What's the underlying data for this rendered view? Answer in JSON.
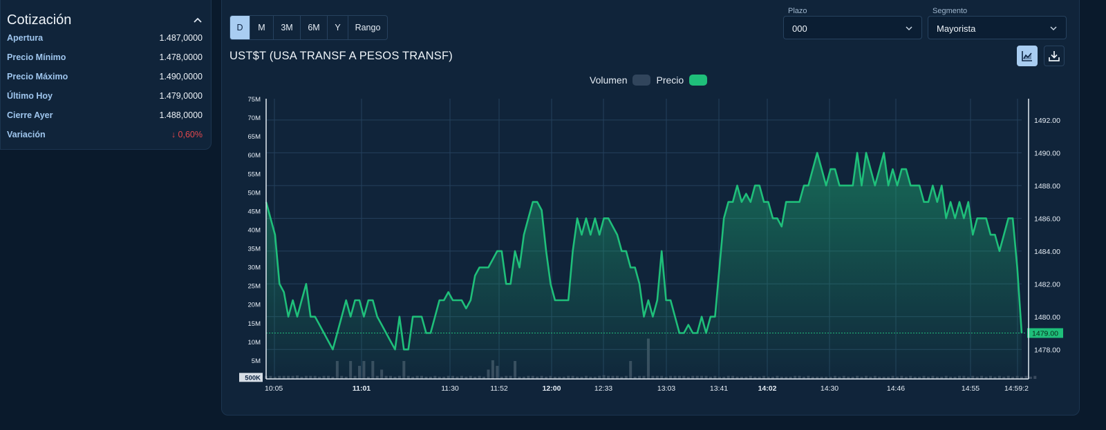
{
  "quote": {
    "title": "Cotización",
    "rows": [
      {
        "label": "Apertura",
        "value": "1.487,0000"
      },
      {
        "label": "Precio Mínimo",
        "value": "1.478,0000"
      },
      {
        "label": "Precio Máximo",
        "value": "1.490,0000"
      },
      {
        "label": "Último Hoy",
        "value": "1.479,0000"
      },
      {
        "label": "Cierre Ayer",
        "value": "1.488,0000"
      },
      {
        "label": "Variación",
        "value": "↓ 0,60%",
        "negative": true
      }
    ]
  },
  "toolbar": {
    "ranges": [
      "D",
      "M",
      "3M",
      "6M",
      "Y",
      "Rango"
    ],
    "active_range": "D",
    "plazo_label": "Plazo",
    "plazo_value": "000",
    "segmento_label": "Segmento",
    "segmento_value": "Mayorista"
  },
  "chart": {
    "title": "UST$T (USA TRANSF A PESOS TRANSF)",
    "legend_volume": "Volumen",
    "legend_price": "Precio"
  },
  "colors": {
    "price_line": "#1fbf7a",
    "volume_bar": "#3a4b5f",
    "last_price_tag": "#1fbf7a",
    "negative": "#e5484d"
  },
  "icons": [
    "chevron-up-icon",
    "chevron-down-icon",
    "area-chart-icon",
    "download-icon"
  ],
  "chart_data": {
    "type": "line",
    "series": [
      {
        "name": "Precio",
        "values": [
          1487.0,
          1486.0,
          1485.0,
          1482.0,
          1481.5,
          1480.0,
          1481.0,
          1480.0,
          1481.0,
          1482.0,
          1480.0,
          1480.0,
          1479.5,
          1479.0,
          1478.5,
          1478.0,
          1479.0,
          1480.0,
          1481.0,
          1480.0,
          1481.0,
          1481.0,
          1480.0,
          1481.0,
          1481.0,
          1480.0,
          1479.5,
          1479.0,
          1478.5,
          1478.0,
          1480.0,
          1478.0,
          1478.0,
          1480.0,
          1480.0,
          1480.0,
          1479.0,
          1479.0,
          1480.0,
          1481.0,
          1481.0,
          1481.5,
          1481.0,
          1481.0,
          1481.0,
          1480.5,
          1481.0,
          1482.5,
          1483.0,
          1483.0,
          1483.0,
          1483.5,
          1484.0,
          1484.0,
          1482.0,
          1482.0,
          1484.0,
          1483.0,
          1485.0,
          1486.0,
          1487.0,
          1487.0,
          1486.5,
          1484.0,
          1482.0,
          1481.0,
          1481.0,
          1481.0,
          1481.0,
          1484.0,
          1486.0,
          1485.0,
          1486.0,
          1485.0,
          1486.0,
          1485.0,
          1486.0,
          1486.0,
          1485.5,
          1485.0,
          1484.0,
          1484.0,
          1483.0,
          1483.0,
          1482.0,
          1480.0,
          1481.0,
          1480.0,
          1481.0,
          1484.0,
          1481.0,
          1481.0,
          1480.0,
          1479.0,
          1479.0,
          1479.5,
          1479.0,
          1479.0,
          1480.0,
          1479.0,
          1480.0,
          1480.0,
          1483.0,
          1486.0,
          1487.0,
          1487.0,
          1488.0,
          1487.0,
          1487.5,
          1487.0,
          1488.0,
          1488.0,
          1487.0,
          1487.0,
          1486.0,
          1486.0,
          1485.5,
          1487.0,
          1487.0,
          1487.0,
          1487.0,
          1488.0,
          1488.0,
          1489.0,
          1490.0,
          1489.0,
          1488.0,
          1489.0,
          1489.0,
          1488.0,
          1488.0,
          1488.0,
          1488.0,
          1490.0,
          1488.0,
          1490.0,
          1489.0,
          1488.0,
          1489.0,
          1490.0,
          1488.0,
          1489.0,
          1488.0,
          1489.0,
          1489.0,
          1488.0,
          1488.0,
          1488.0,
          1487.0,
          1487.0,
          1488.0,
          1487.0,
          1488.0,
          1486.0,
          1487.0,
          1486.0,
          1487.0,
          1486.0,
          1487.0,
          1485.0,
          1486.0,
          1486.0,
          1486.0,
          1485.0,
          1485.0,
          1484.0,
          1485.0,
          1486.0,
          1486.0,
          1483.0,
          1479.0
        ],
        "axis": "right"
      },
      {
        "name": "Volumen",
        "values": [
          0.8,
          0.8,
          0.6,
          0.8,
          0.8,
          0.8,
          0.8,
          0.9,
          0.6,
          0.8,
          0.8,
          0.8,
          0.6,
          0.8,
          0.8,
          0.6,
          4.8,
          0.8,
          0.6,
          4.8,
          0.8,
          3.5,
          4.8,
          0.6,
          4.8,
          0.8,
          2.5,
          0.8,
          0.8,
          0.6,
          0.8,
          4.8,
          0.8,
          0.6,
          0.8,
          0.8,
          0.6,
          0.6,
          0.8,
          0.6,
          0.6,
          0.8,
          0.8,
          0.6,
          0.8,
          0.6,
          0.8,
          0.6,
          0.8,
          0.6,
          2.5,
          5,
          3.5,
          0.6,
          0.8,
          0.8,
          4.8,
          0.6,
          0.6,
          0.8,
          0.8,
          0.6,
          0.8,
          0.6,
          0.8,
          0.6,
          0.6,
          0.6,
          0.8,
          0.8,
          0.6,
          0.6,
          0.8,
          0.6,
          0.6,
          0.8,
          1,
          0.8,
          0.8,
          0.8,
          0.6,
          0.8,
          4.8,
          0.6,
          0.8,
          0.8,
          10.8,
          0.8,
          0.8,
          0.8,
          0.6,
          0.8,
          0.8,
          0.8,
          0.8,
          0.6,
          0.8,
          0.8,
          0.8,
          0.8,
          0.6,
          0.8,
          0.6,
          0.6,
          0.8,
          0.8,
          0.6,
          0.6,
          0.6,
          0.8,
          0.6,
          0.6,
          0.8,
          0.6,
          0.6,
          0.8,
          0.6,
          0.6,
          0.6,
          0.8,
          0.8,
          0.6,
          0.8,
          0.6,
          0.6,
          0.6,
          0.6,
          0.6,
          0.8,
          0.6,
          0.8,
          0.6,
          0.6,
          0.8,
          0.6,
          0.8,
          0.6,
          0.8,
          0.6,
          0.6,
          0.6,
          0.8,
          0.6,
          0.8,
          0.6,
          0.8,
          0.6,
          0.6,
          0.8,
          0.6,
          0.8,
          0.6,
          0.6,
          0.8,
          0.6,
          0.6,
          0.8,
          0.8,
          0.6,
          0.8,
          0.6,
          0.8,
          0.6,
          0.8,
          0.6,
          0.8,
          0.6,
          0.8,
          0.6,
          0.8,
          0.6,
          0.8,
          0.6,
          0.8
        ],
        "axis": "left"
      }
    ],
    "x_ticks": [
      "10:05",
      "11:01",
      "11:30",
      "11:52",
      "12:00",
      "12:33",
      "13:03",
      "13:41",
      "14:02",
      "14:30",
      "14:46",
      "14:55",
      "14:59:2"
    ],
    "bold_x_ticks": [
      "11:01",
      "12:00",
      "14:02"
    ],
    "y_left_ticks": [
      "500K",
      "5M",
      "10M",
      "15M",
      "20M",
      "25M",
      "30M",
      "35M",
      "40M",
      "45M",
      "50M",
      "55M",
      "60M",
      "65M",
      "70M",
      "75M"
    ],
    "y_left_range": [
      0,
      75
    ],
    "y_left_unit": "M",
    "y_right_ticks": [
      "1478.00",
      "1480.00",
      "1482.00",
      "1484.00",
      "1486.00",
      "1488.00",
      "1490.00",
      "1492.00"
    ],
    "y_right_range": [
      1476.2,
      1493.3
    ],
    "last_price_label": "1479.00",
    "last_price": 1479.0,
    "grid": true,
    "legend": "top-center"
  }
}
